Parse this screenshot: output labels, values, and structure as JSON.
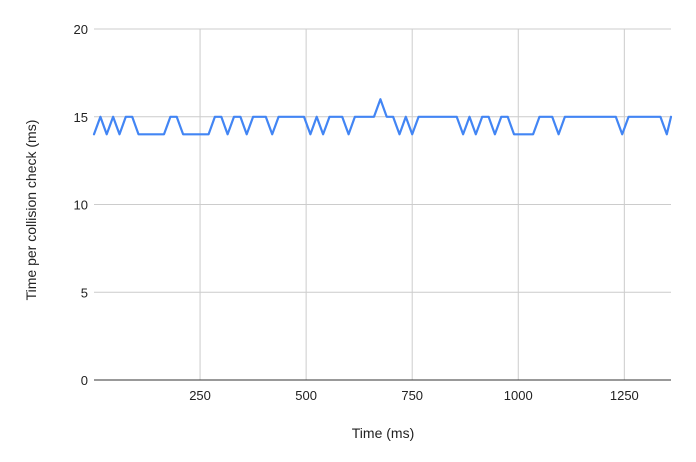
{
  "chart_data": {
    "type": "line",
    "title": "",
    "xlabel": "Time (ms)",
    "ylabel": "Time per collision check (ms)",
    "xlim": [
      0,
      1360
    ],
    "ylim": [
      0,
      20
    ],
    "x_ticks": [
      250,
      500,
      750,
      1000,
      1250
    ],
    "y_ticks": [
      0,
      5,
      10,
      15,
      20
    ],
    "grid": true,
    "legend": "none",
    "series": [
      {
        "color": "#4285f4",
        "points": [
          [
            0,
            14
          ],
          [
            15,
            15
          ],
          [
            30,
            14
          ],
          [
            45,
            15
          ],
          [
            60,
            14
          ],
          [
            75,
            15
          ],
          [
            90,
            15
          ],
          [
            105,
            14
          ],
          [
            120,
            14
          ],
          [
            135,
            14
          ],
          [
            150,
            14
          ],
          [
            165,
            14
          ],
          [
            180,
            15
          ],
          [
            195,
            15
          ],
          [
            210,
            14
          ],
          [
            225,
            14
          ],
          [
            240,
            14
          ],
          [
            255,
            14
          ],
          [
            270,
            14
          ],
          [
            285,
            15
          ],
          [
            300,
            15
          ],
          [
            315,
            14
          ],
          [
            330,
            15
          ],
          [
            345,
            15
          ],
          [
            360,
            14
          ],
          [
            375,
            15
          ],
          [
            390,
            15
          ],
          [
            405,
            15
          ],
          [
            420,
            14
          ],
          [
            435,
            15
          ],
          [
            450,
            15
          ],
          [
            465,
            15
          ],
          [
            480,
            15
          ],
          [
            495,
            15
          ],
          [
            510,
            14
          ],
          [
            525,
            15
          ],
          [
            540,
            14
          ],
          [
            555,
            15
          ],
          [
            570,
            15
          ],
          [
            585,
            15
          ],
          [
            600,
            14
          ],
          [
            615,
            15
          ],
          [
            630,
            15
          ],
          [
            645,
            15
          ],
          [
            660,
            15
          ],
          [
            675,
            16
          ],
          [
            690,
            15
          ],
          [
            705,
            15
          ],
          [
            720,
            14
          ],
          [
            735,
            15
          ],
          [
            750,
            14
          ],
          [
            765,
            15
          ],
          [
            780,
            15
          ],
          [
            795,
            15
          ],
          [
            810,
            15
          ],
          [
            825,
            15
          ],
          [
            840,
            15
          ],
          [
            855,
            15
          ],
          [
            870,
            14
          ],
          [
            885,
            15
          ],
          [
            900,
            14
          ],
          [
            915,
            15
          ],
          [
            930,
            15
          ],
          [
            945,
            14
          ],
          [
            960,
            15
          ],
          [
            975,
            15
          ],
          [
            990,
            14
          ],
          [
            1005,
            14
          ],
          [
            1020,
            14
          ],
          [
            1035,
            14
          ],
          [
            1050,
            15
          ],
          [
            1065,
            15
          ],
          [
            1080,
            15
          ],
          [
            1095,
            14
          ],
          [
            1110,
            15
          ],
          [
            1125,
            15
          ],
          [
            1140,
            15
          ],
          [
            1155,
            15
          ],
          [
            1170,
            15
          ],
          [
            1185,
            15
          ],
          [
            1200,
            15
          ],
          [
            1215,
            15
          ],
          [
            1230,
            15
          ],
          [
            1245,
            14
          ],
          [
            1260,
            15
          ],
          [
            1275,
            15
          ],
          [
            1290,
            15
          ],
          [
            1305,
            15
          ],
          [
            1320,
            15
          ],
          [
            1335,
            15
          ],
          [
            1350,
            14
          ],
          [
            1360,
            15
          ]
        ]
      }
    ]
  }
}
